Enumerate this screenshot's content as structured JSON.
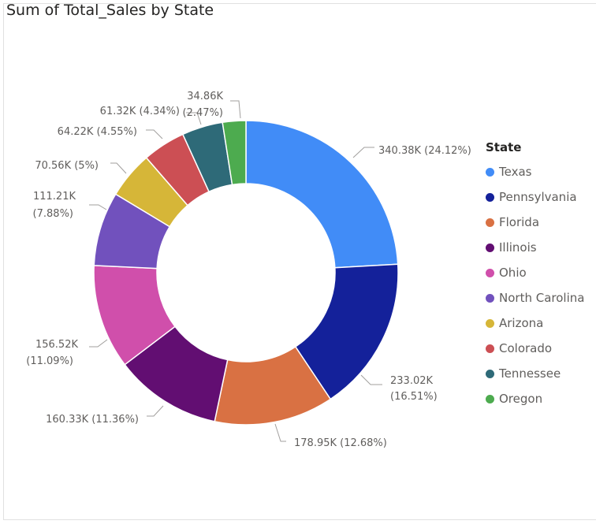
{
  "title": "Sum of Total_Sales by State",
  "chart_data": {
    "type": "pie",
    "variant": "donut",
    "title": "Sum of Total_Sales by State",
    "legend_title": "State",
    "legend_position": "right",
    "slices": [
      {
        "name": "Texas",
        "value": 340.38,
        "value_label": "340.38K",
        "percent_label": "24.12%",
        "color": "#418cf7"
      },
      {
        "name": "Pennsylvania",
        "value": 233.02,
        "value_label": "233.02K",
        "percent_label": "16.51%",
        "color": "#14219a"
      },
      {
        "name": "Florida",
        "value": 178.95,
        "value_label": "178.95K",
        "percent_label": "12.68%",
        "color": "#d97143"
      },
      {
        "name": "Illinois",
        "value": 160.33,
        "value_label": "160.33K",
        "percent_label": "11.36%",
        "color": "#620e72"
      },
      {
        "name": "Ohio",
        "value": 156.52,
        "value_label": "156.52K",
        "percent_label": "11.09%",
        "color": "#d04fab"
      },
      {
        "name": "North Carolina",
        "value": 111.21,
        "value_label": "111.21K",
        "percent_label": "7.88%",
        "color": "#7151bd"
      },
      {
        "name": "Arizona",
        "value": 70.56,
        "value_label": "70.56K",
        "percent_label": "5%",
        "color": "#d6b638"
      },
      {
        "name": "Colorado",
        "value": 64.22,
        "value_label": "64.22K",
        "percent_label": "4.55%",
        "color": "#cc4f54"
      },
      {
        "name": "Tennessee",
        "value": 61.32,
        "value_label": "61.32K",
        "percent_label": "4.34%",
        "color": "#2e6a78"
      },
      {
        "name": "Oregon",
        "value": 34.86,
        "value_label": "34.86K",
        "percent_label": "2.47%",
        "color": "#4dab4f"
      }
    ]
  }
}
